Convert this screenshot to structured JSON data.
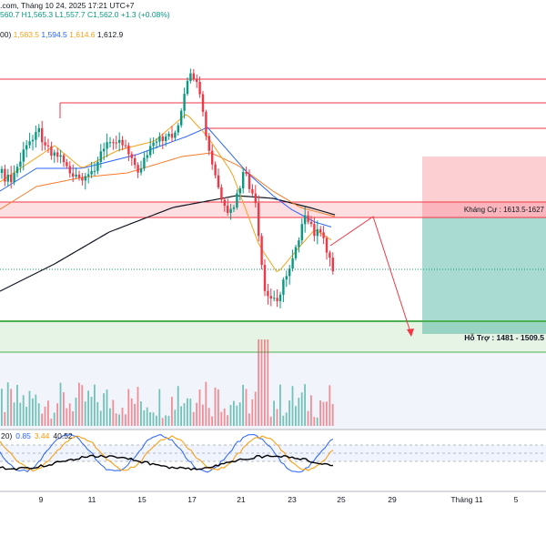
{
  "header": {
    "line1": {
      "prefix": ".com, Tháng 10 24, 2025 17:21 UTC+7",
      "open": "560.7",
      "high": "H1,565.3",
      "low": "L1,557.7",
      "close": "C1,562.0",
      "change": "+1.3 (+0.08%)"
    },
    "line2": {
      "prefix": "00)",
      "ma1": "1,583.5",
      "ma2": "1,594.5",
      "ma3": "1,614.6",
      "ma4": "1,612.9"
    }
  },
  "colors": {
    "up": "#089981",
    "down": "#f23645",
    "ma_fast": "#f7a21b",
    "ma_mid": "#2962ff",
    "ma_slow": "#f57c2a",
    "ma_long": "#131722",
    "resistance": "#f23645",
    "support": "#4caf50",
    "stoch_k": "#2962ff",
    "stoch_d": "#ff9800",
    "rsi": "#000000"
  },
  "chart_data": {
    "type": "candlestick",
    "annotations": {
      "resistance_label": "Kháng Cự : 1613.5-1627",
      "support_label": "Hỗ Trợ : 1481 - 1509.5"
    },
    "x_tick_labels": [
      "9",
      "11",
      "15",
      "17",
      "21",
      "23",
      "25",
      "29",
      "Tháng 11",
      "5"
    ],
    "oscillator": {
      "label": "20)",
      "value_k": "0.85",
      "value_d": "3.44",
      "value_rsi": "40.52"
    },
    "price_levels": {
      "resistance_zone": [
        1613.5,
        1627
      ],
      "support_zone": [
        1481,
        1509.5
      ]
    }
  }
}
